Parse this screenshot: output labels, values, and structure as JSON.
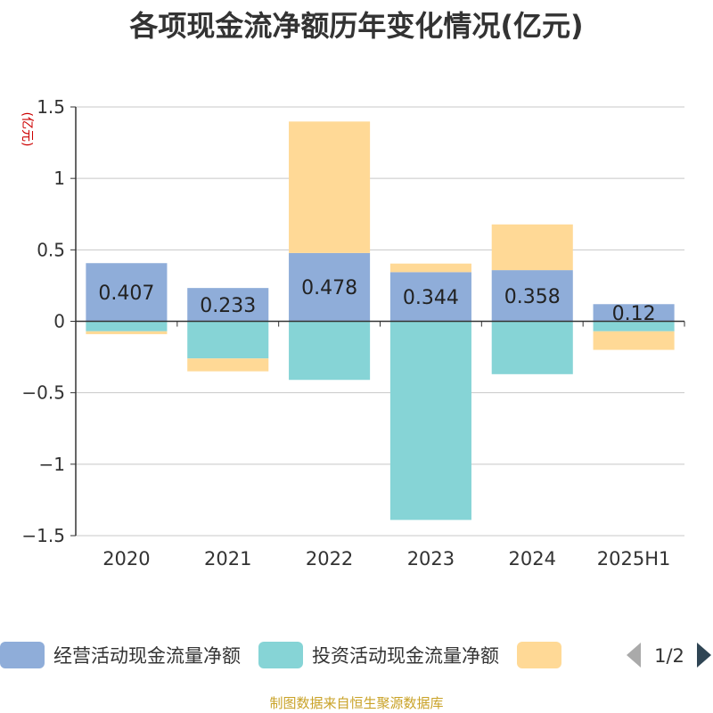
{
  "chart_data": {
    "type": "bar",
    "stacked": true,
    "title": "各项现金流净额历年变化情况(亿元)",
    "ylabel": "(亿元)",
    "ylim": [
      -1.5,
      1.5
    ],
    "yticks": [
      1.5,
      1,
      0.5,
      0,
      -0.5,
      -1,
      -1.5
    ],
    "ytick_labels": [
      "1.5",
      "1",
      "0.5",
      "0",
      "−0.5",
      "−1",
      "−1.5"
    ],
    "categories": [
      "2020",
      "2021",
      "2022",
      "2023",
      "2024",
      "2025H1"
    ],
    "series": [
      {
        "name": "经营活动现金流量净额",
        "color": "#8fadd9",
        "values": [
          0.407,
          0.233,
          0.478,
          0.344,
          0.358,
          0.12
        ],
        "labels": [
          "0.407",
          "0.233",
          "0.478",
          "0.344",
          "0.358",
          "0.12"
        ]
      },
      {
        "name": "投资活动现金流量净额",
        "color": "#86d4d6",
        "values": [
          -0.07,
          -0.26,
          -0.41,
          -1.39,
          -0.37,
          -0.07
        ]
      },
      {
        "name": "",
        "color": "#ffd996",
        "values": [
          -0.02,
          -0.09,
          0.92,
          0.06,
          0.32,
          -0.13
        ]
      }
    ],
    "grid": true,
    "legend": {
      "position": "bottom",
      "page": "1/2"
    }
  },
  "source": "制图数据来自恒生聚源数据库"
}
